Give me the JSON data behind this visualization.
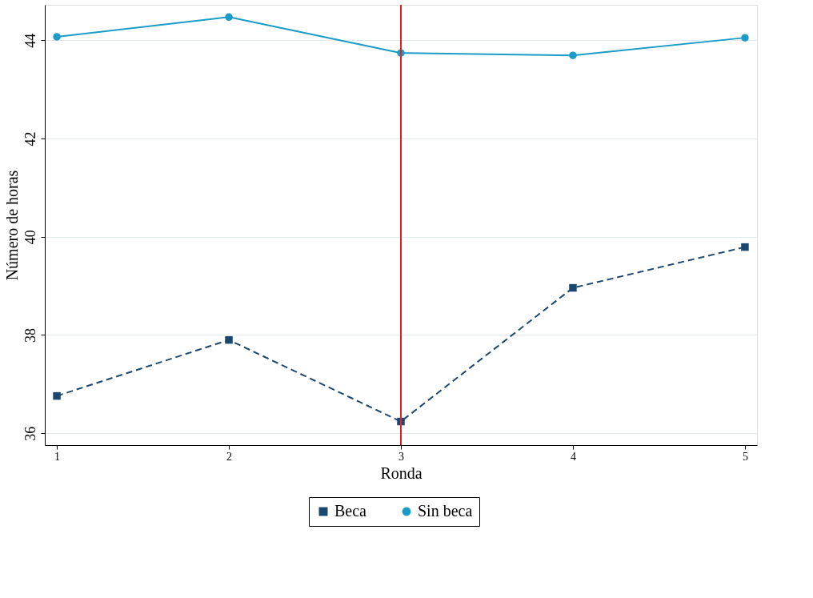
{
  "chart_data": {
    "type": "line",
    "xlabel": "Ronda",
    "ylabel": "Número de horas",
    "x": [
      1,
      2,
      3,
      4,
      5
    ],
    "series": [
      {
        "name": "Beca",
        "color": "#1a476f",
        "marker": "square",
        "line_style": "dashed",
        "values": [
          36.76,
          37.9,
          36.24,
          38.96,
          39.79
        ]
      },
      {
        "name": "Sin beca",
        "color": "#1a9bc8",
        "marker": "circle",
        "line_style": "solid",
        "values": [
          44.07,
          44.47,
          43.74,
          43.69,
          44.05
        ]
      }
    ],
    "xlim": [
      0.93,
      5.07
    ],
    "xticks": [
      1,
      2,
      3,
      4,
      5
    ],
    "ylim": [
      35.76,
      44.72
    ],
    "yticks": [
      36,
      38,
      40,
      42,
      44
    ],
    "grid": "y",
    "legend": "bottom",
    "ref_lines": [
      {
        "axis": "x",
        "value": 3,
        "color": "#e8201f"
      }
    ]
  }
}
